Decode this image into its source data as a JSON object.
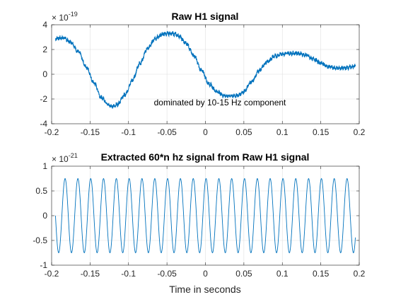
{
  "chart_data": [
    {
      "type": "line",
      "title": "Raw H1 signal",
      "xlabel": "",
      "ylabel": "",
      "xlim": [
        -0.2,
        0.2
      ],
      "ylim": [
        -4,
        4
      ],
      "x_ticks": [
        "-0.2",
        "-0.15",
        "-0.1",
        "-0.05",
        "0",
        "0.05",
        "0.1",
        "0.15",
        "0.2"
      ],
      "y_ticks": [
        "4",
        "2",
        "0",
        "-2",
        "-4"
      ],
      "y_exponent": "× 10",
      "y_exponent_power": "-19",
      "grid": true,
      "color": "#0072BD",
      "annotation": "dominated by 10-15 Hz component",
      "series": [
        {
          "x": [
            -0.195,
            -0.185,
            -0.175,
            -0.165,
            -0.155,
            -0.145,
            -0.135,
            -0.125,
            -0.12,
            -0.115,
            -0.105,
            -0.095,
            -0.085,
            -0.075,
            -0.065,
            -0.055,
            -0.045,
            -0.04,
            -0.035,
            -0.025,
            -0.015,
            -0.005,
            0.005,
            0.015,
            0.025,
            0.035,
            0.042,
            0.05,
            0.06,
            0.07,
            0.08,
            0.09,
            0.1,
            0.11,
            0.12,
            0.13,
            0.14,
            0.15,
            0.16,
            0.17,
            0.18,
            0.19,
            0.195
          ],
          "y": [
            2.9,
            2.95,
            2.6,
            1.8,
            0.6,
            -0.7,
            -1.9,
            -2.5,
            -2.6,
            -2.45,
            -1.7,
            -0.5,
            0.9,
            2.1,
            2.9,
            3.25,
            3.3,
            3.25,
            3.1,
            2.5,
            1.5,
            0.3,
            -0.8,
            -1.4,
            -1.75,
            -1.75,
            -1.7,
            -1.4,
            -0.6,
            0.3,
            1.0,
            1.45,
            1.65,
            1.7,
            1.7,
            1.55,
            1.25,
            0.9,
            0.6,
            0.5,
            0.5,
            0.6,
            0.65
          ]
        }
      ]
    },
    {
      "type": "line",
      "title": "Extracted 60*n hz signal from Raw H1 signal",
      "xlabel": "Time in seconds",
      "ylabel": "",
      "xlim": [
        -0.2,
        0.2
      ],
      "ylim": [
        -1,
        1
      ],
      "x_ticks": [
        "-0.2",
        "-0.15",
        "-0.1",
        "-0.05",
        "0",
        "0.05",
        "0.1",
        "0.15",
        "0.2"
      ],
      "y_ticks": [
        "1",
        "0.5",
        "0",
        "-0.5",
        "-1"
      ],
      "y_exponent": "× 10",
      "y_exponent_power": "-21",
      "grid": true,
      "color": "#0072BD",
      "series": [
        {
          "form": "sinusoid",
          "frequency_hz": 60,
          "amplitude": 0.75,
          "x_range": [
            -0.195,
            0.195
          ]
        }
      ]
    }
  ]
}
